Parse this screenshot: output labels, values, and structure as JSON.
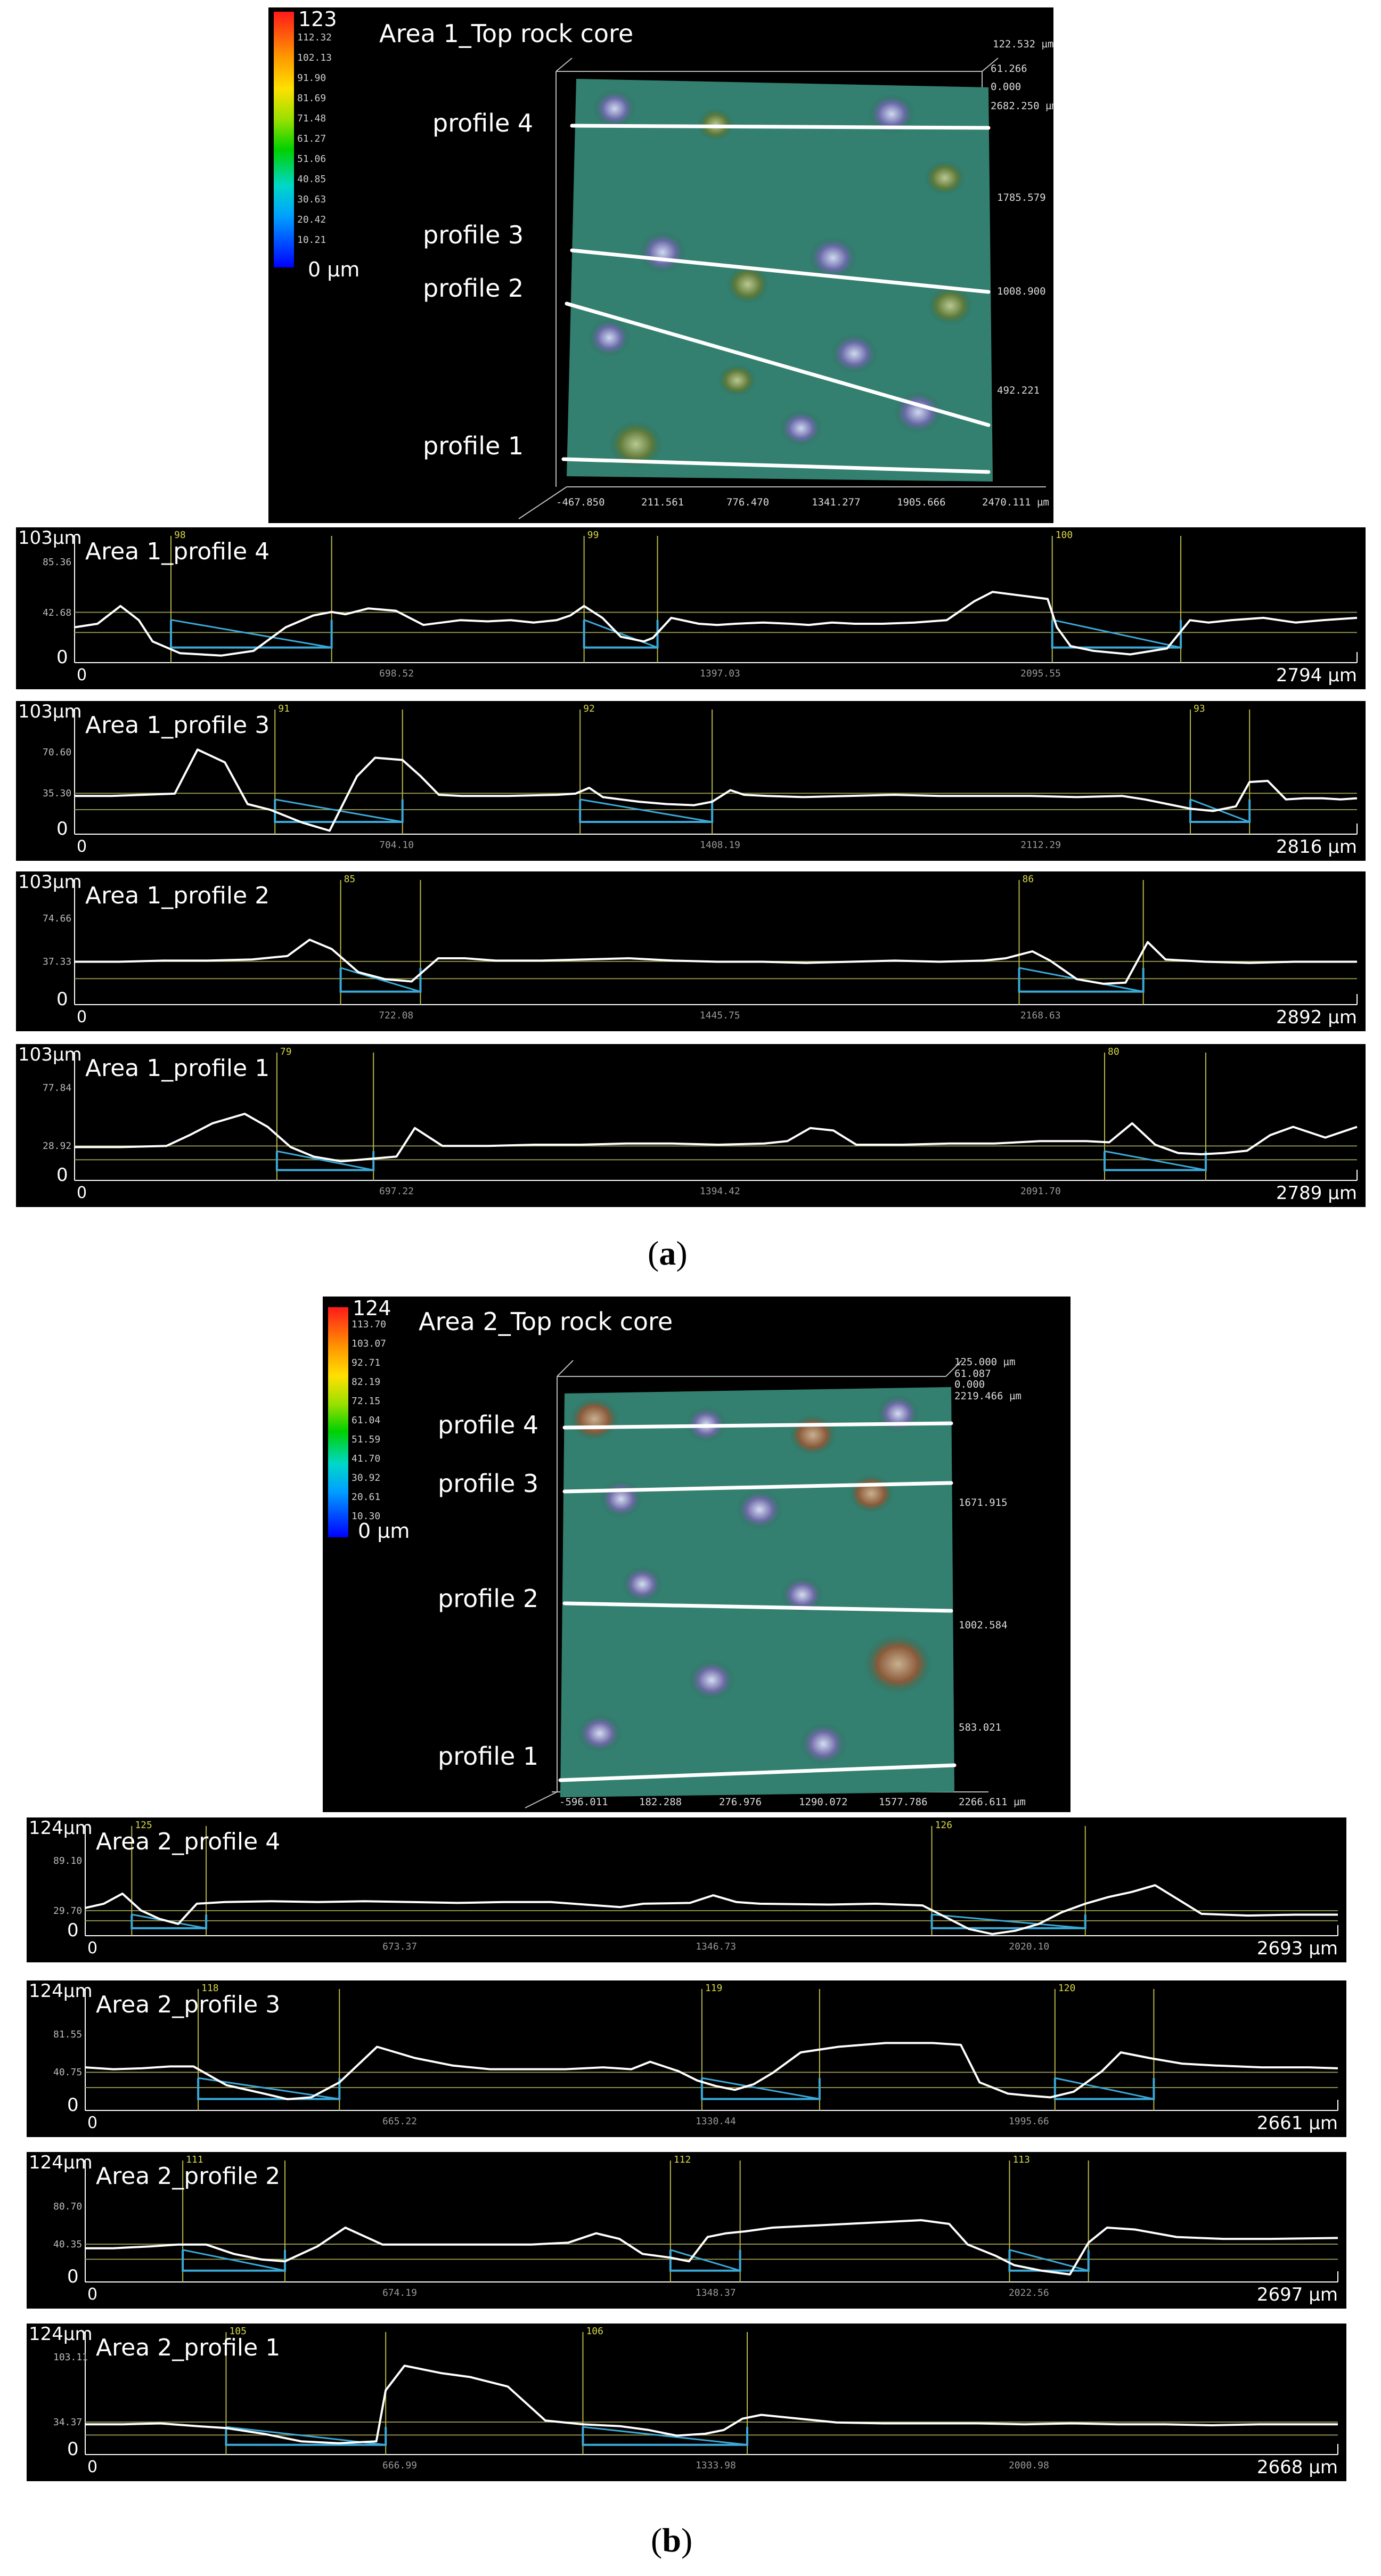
{
  "captions": {
    "a": "(a)",
    "a_letter": "a",
    "b": "(b)",
    "b_letter": "b"
  },
  "area1_3d": {
    "title": "Area 1_Top rock core",
    "colorbar": {
      "max": "123",
      "zero": "0 µm",
      "ticks": [
        "112.32",
        "102.13",
        "91.90",
        "81.69",
        "71.48",
        "61.27",
        "51.06",
        "40.85",
        "30.63",
        "20.42",
        "10.21"
      ]
    },
    "profile_labels": [
      "profile 4",
      "profile 3",
      "profile 2",
      "profile 1"
    ],
    "z_top": "122.532 µm",
    "z_zero": "0.000",
    "y_ticks": [
      "2682.250 µm",
      "61.266",
      "1785.579",
      "1008.900",
      "492.221"
    ],
    "x_ticks": [
      "-467.850",
      "211.561",
      "776.470",
      "1341.277",
      "1905.666",
      "2470.111 µm"
    ]
  },
  "area2_3d": {
    "title": "Area 2_Top rock core",
    "colorbar": {
      "max": "124",
      "zero": "0 µm",
      "ticks": [
        "113.70",
        "103.07",
        "92.71",
        "82.19",
        "72.15",
        "61.04",
        "51.59",
        "41.70",
        "30.92",
        "20.61",
        "10.30"
      ]
    },
    "profile_labels": [
      "profile 4",
      "profile 3",
      "profile 2",
      "profile 1"
    ],
    "z_top": "125.000 µm",
    "z_zero": "0.000",
    "y_ticks": [
      "2219.466 µm",
      "61.087",
      "1671.915",
      "1002.584",
      "583.021"
    ],
    "x_ticks": [
      "-596.011",
      "182.288",
      "276.976",
      "1290.072",
      "1577.786",
      "2266.611 µm"
    ]
  },
  "profiles": [
    {
      "label": "Area 1_profile 4",
      "ymax": "103",
      "yunit": "µm",
      "ymid": "85.36",
      "ymarker": "42.68",
      "xmax": "2794",
      "xunit": "µm",
      "xzero": "0",
      "xticks": [
        "698.52",
        "1397.03",
        "2095.55"
      ],
      "markers": [
        "98",
        "99",
        "100"
      ]
    },
    {
      "label": "Area 1_profile 3",
      "ymax": "103",
      "yunit": "µm",
      "ymid": "70.60",
      "ymarker": "35.30",
      "xmax": "2816",
      "xunit": "µm",
      "xzero": "0",
      "xticks": [
        "704.10",
        "1408.19",
        "2112.29"
      ],
      "markers": [
        "91",
        "92",
        "93"
      ]
    },
    {
      "label": "Area 1_profile 2",
      "ymax": "103",
      "yunit": "µm",
      "ymid": "74.66",
      "ymarker": "37.33",
      "xmax": "2892",
      "xunit": "µm",
      "xzero": "0",
      "xticks": [
        "722.08",
        "1445.75",
        "2168.63"
      ],
      "markers": [
        "85",
        "86"
      ]
    },
    {
      "label": "Area 1_profile 1",
      "ymax": "103",
      "yunit": "µm",
      "ymid": "77.84",
      "ymarker": "28.92",
      "xmax": "2789",
      "xunit": "µm",
      "xzero": "0",
      "xticks": [
        "697.22",
        "1394.42",
        "2091.70"
      ],
      "markers": [
        "79",
        "80"
      ]
    },
    {
      "label": "Area 2_profile 4",
      "ymax": "124",
      "yunit": "µm",
      "ymid": "89.10",
      "ymarker": "29.70",
      "xmax": "2693",
      "xunit": "µm",
      "xzero": "0",
      "xticks": [
        "673.37",
        "1346.73",
        "2020.10"
      ],
      "markers": [
        "125",
        "126"
      ]
    },
    {
      "label": "Area 2_profile 3",
      "ymax": "124",
      "yunit": "µm",
      "ymid": "81.55",
      "ymarker": "40.75",
      "xmax": "2661",
      "xunit": "µm",
      "xzero": "0",
      "xticks": [
        "665.22",
        "1330.44",
        "1995.66"
      ],
      "markers": [
        "118",
        "119",
        "120"
      ]
    },
    {
      "label": "Area 2_profile 2",
      "ymax": "124",
      "yunit": "µm",
      "ymid": "80.70",
      "ymarker": "40.35",
      "xmax": "2697",
      "xunit": "µm",
      "xzero": "0",
      "xticks": [
        "674.19",
        "1348.37",
        "2022.56"
      ],
      "markers": [
        "111",
        "112",
        "113"
      ]
    },
    {
      "label": "Area 2_profile 1",
      "ymax": "124",
      "yunit": "µm",
      "ymid": "103.11",
      "ymarker": "34.37",
      "xmax": "2668",
      "xunit": "µm",
      "xzero": "0",
      "xticks": [
        "666.99",
        "1333.98",
        "2000.98"
      ],
      "markers": [
        "105",
        "106"
      ]
    }
  ],
  "chart_data": [
    {
      "type": "line",
      "title": "Area 1_profile 4",
      "xlim": [
        0,
        2794
      ],
      "ylim": [
        0,
        103
      ],
      "x": [
        0,
        50,
        100,
        140,
        170,
        230,
        320,
        390,
        460,
        520,
        560,
        590,
        640,
        700,
        760,
        840,
        900,
        950,
        1000,
        1050,
        1080,
        1110,
        1150,
        1190,
        1240,
        1260,
        1300,
        1360,
        1400,
        1440,
        1500,
        1560,
        1600,
        1650,
        1700,
        1760,
        1830,
        1900,
        1960,
        2000,
        2040,
        2080,
        2120,
        2140,
        2170,
        2220,
        2300,
        2380,
        2430,
        2470,
        2520,
        2590,
        2660,
        2720,
        2794
      ],
      "y": [
        30,
        33,
        48,
        36,
        18,
        8,
        6,
        10,
        30,
        40,
        43,
        41,
        46,
        44,
        32,
        36,
        35,
        36,
        34,
        36,
        40,
        48,
        38,
        22,
        18,
        21,
        38,
        33,
        32,
        33,
        34,
        33,
        32,
        34,
        33,
        33,
        34,
        36,
        52,
        60,
        58,
        56,
        54,
        30,
        14,
        10,
        7,
        12,
        36,
        34,
        36,
        38,
        34,
        36,
        38
      ],
      "series_color": "#ffffff"
    },
    {
      "type": "line",
      "title": "Area 1_profile 3",
      "xlim": [
        0,
        2816
      ],
      "ylim": [
        0,
        103
      ],
      "x": [
        0,
        80,
        150,
        220,
        270,
        330,
        380,
        430,
        500,
        560,
        620,
        660,
        720,
        760,
        800,
        850,
        950,
        1060,
        1100,
        1130,
        1160,
        1200,
        1240,
        1300,
        1360,
        1400,
        1440,
        1470,
        1520,
        1600,
        1700,
        1800,
        1900,
        2000,
        2100,
        2200,
        2300,
        2350,
        2400,
        2450,
        2500,
        2550,
        2580,
        2620,
        2660,
        2700,
        2740,
        2780,
        2816
      ],
      "y": [
        33,
        33,
        34,
        35,
        73,
        62,
        26,
        21,
        10,
        3,
        50,
        66,
        64,
        50,
        34,
        33,
        33,
        34,
        35,
        40,
        32,
        30,
        28,
        26,
        25,
        28,
        38,
        34,
        33,
        32,
        33,
        34,
        33,
        33,
        33,
        32,
        33,
        30,
        26,
        22,
        20,
        24,
        45,
        46,
        30,
        31,
        31,
        30,
        31
      ]
    },
    {
      "type": "line",
      "title": "Area 1_profile 2",
      "xlim": [
        0,
        2892
      ],
      "ylim": [
        0,
        103
      ],
      "x": [
        0,
        100,
        200,
        300,
        400,
        480,
        530,
        580,
        640,
        700,
        760,
        820,
        880,
        950,
        1050,
        1150,
        1250,
        1350,
        1450,
        1550,
        1650,
        1750,
        1850,
        1950,
        2050,
        2100,
        2160,
        2200,
        2260,
        2320,
        2370,
        2420,
        2460,
        2550,
        2650,
        2750,
        2892
      ],
      "y": [
        37,
        37,
        38,
        38,
        39,
        42,
        56,
        48,
        28,
        22,
        20,
        40,
        40,
        38,
        38,
        39,
        40,
        38,
        37,
        37,
        36,
        37,
        38,
        37,
        38,
        40,
        46,
        38,
        22,
        18,
        19,
        54,
        39,
        37,
        36,
        37,
        37
      ]
    },
    {
      "type": "line",
      "title": "Area 1_profile 1",
      "xlim": [
        0,
        2789
      ],
      "ylim": [
        0,
        103
      ],
      "x": [
        0,
        100,
        200,
        250,
        300,
        370,
        420,
        470,
        520,
        580,
        640,
        700,
        740,
        800,
        900,
        1000,
        1100,
        1200,
        1300,
        1400,
        1500,
        1550,
        1600,
        1650,
        1700,
        1800,
        1900,
        2000,
        2100,
        2200,
        2250,
        2300,
        2350,
        2400,
        2450,
        2500,
        2550,
        2600,
        2650,
        2720,
        2789
      ],
      "y": [
        28,
        28,
        29,
        38,
        48,
        56,
        45,
        28,
        20,
        16,
        18,
        20,
        44,
        29,
        29,
        30,
        30,
        31,
        31,
        30,
        31,
        33,
        44,
        42,
        30,
        30,
        31,
        31,
        33,
        33,
        32,
        48,
        30,
        23,
        22,
        23,
        25,
        38,
        45,
        36,
        45
      ]
    },
    {
      "type": "line",
      "title": "Area 2_profile 4",
      "xlim": [
        0,
        2693
      ],
      "ylim": [
        0,
        124
      ],
      "x": [
        0,
        40,
        80,
        120,
        160,
        200,
        240,
        300,
        400,
        500,
        600,
        700,
        800,
        900,
        1000,
        1100,
        1150,
        1200,
        1300,
        1350,
        1400,
        1450,
        1600,
        1700,
        1800,
        1900,
        1950,
        2000,
        2050,
        2100,
        2150,
        2200,
        2250,
        2300,
        2400,
        2500,
        2600,
        2693
      ],
      "y": [
        33,
        38,
        50,
        30,
        20,
        14,
        38,
        40,
        41,
        40,
        41,
        40,
        39,
        40,
        40,
        36,
        34,
        38,
        39,
        48,
        40,
        38,
        37,
        38,
        36,
        8,
        2,
        6,
        14,
        28,
        38,
        46,
        52,
        60,
        26,
        24,
        25,
        25
      ]
    },
    {
      "type": "line",
      "title": "Area 2_profile 3",
      "xlim": [
        0,
        2661
      ],
      "ylim": [
        0,
        124
      ],
      "x": [
        0,
        60,
        120,
        180,
        230,
        300,
        380,
        430,
        480,
        540,
        620,
        700,
        780,
        860,
        940,
        1020,
        1100,
        1160,
        1200,
        1260,
        1300,
        1340,
        1380,
        1420,
        1460,
        1520,
        1600,
        1700,
        1800,
        1860,
        1900,
        1960,
        2000,
        2050,
        2100,
        2160,
        2200,
        2260,
        2330,
        2400,
        2500,
        2600,
        2661
      ],
      "y": [
        46,
        44,
        45,
        47,
        47,
        27,
        18,
        12,
        14,
        30,
        68,
        56,
        48,
        44,
        44,
        44,
        46,
        44,
        52,
        42,
        32,
        26,
        22,
        28,
        40,
        62,
        68,
        72,
        72,
        70,
        30,
        18,
        16,
        14,
        20,
        42,
        62,
        56,
        50,
        48,
        46,
        46,
        45
      ]
    },
    {
      "type": "line",
      "title": "Area 2_profile 2",
      "xlim": [
        0,
        2697
      ],
      "ylim": [
        0,
        124
      ],
      "x": [
        0,
        60,
        140,
        200,
        260,
        320,
        380,
        430,
        500,
        560,
        640,
        720,
        800,
        880,
        960,
        1040,
        1100,
        1150,
        1200,
        1260,
        1300,
        1340,
        1380,
        1420,
        1480,
        1560,
        1640,
        1720,
        1800,
        1860,
        1900,
        1960,
        2000,
        2060,
        2120,
        2160,
        2200,
        2260,
        2350,
        2450,
        2550,
        2697
      ],
      "y": [
        36,
        36,
        38,
        40,
        40,
        30,
        24,
        22,
        38,
        58,
        40,
        40,
        40,
        40,
        40,
        42,
        52,
        46,
        30,
        26,
        22,
        48,
        52,
        54,
        58,
        60,
        62,
        64,
        66,
        62,
        40,
        28,
        18,
        12,
        8,
        42,
        58,
        56,
        48,
        46,
        46,
        47
      ]
    },
    {
      "type": "line",
      "title": "Area 2_profile 1",
      "xlim": [
        0,
        2668
      ],
      "ylim": [
        0,
        124
      ],
      "x": [
        0,
        80,
        160,
        240,
        300,
        380,
        460,
        540,
        620,
        640,
        680,
        720,
        760,
        820,
        900,
        980,
        1060,
        1140,
        1200,
        1260,
        1320,
        1360,
        1400,
        1440,
        1520,
        1600,
        1700,
        1800,
        1900,
        2000,
        2100,
        2200,
        2300,
        2400,
        2500,
        2600,
        2668
      ],
      "y": [
        32,
        32,
        33,
        30,
        28,
        22,
        14,
        12,
        14,
        68,
        94,
        90,
        86,
        82,
        72,
        36,
        32,
        30,
        26,
        20,
        22,
        26,
        38,
        42,
        38,
        34,
        33,
        33,
        33,
        32,
        33,
        32,
        32,
        31,
        32,
        32,
        32
      ]
    }
  ]
}
